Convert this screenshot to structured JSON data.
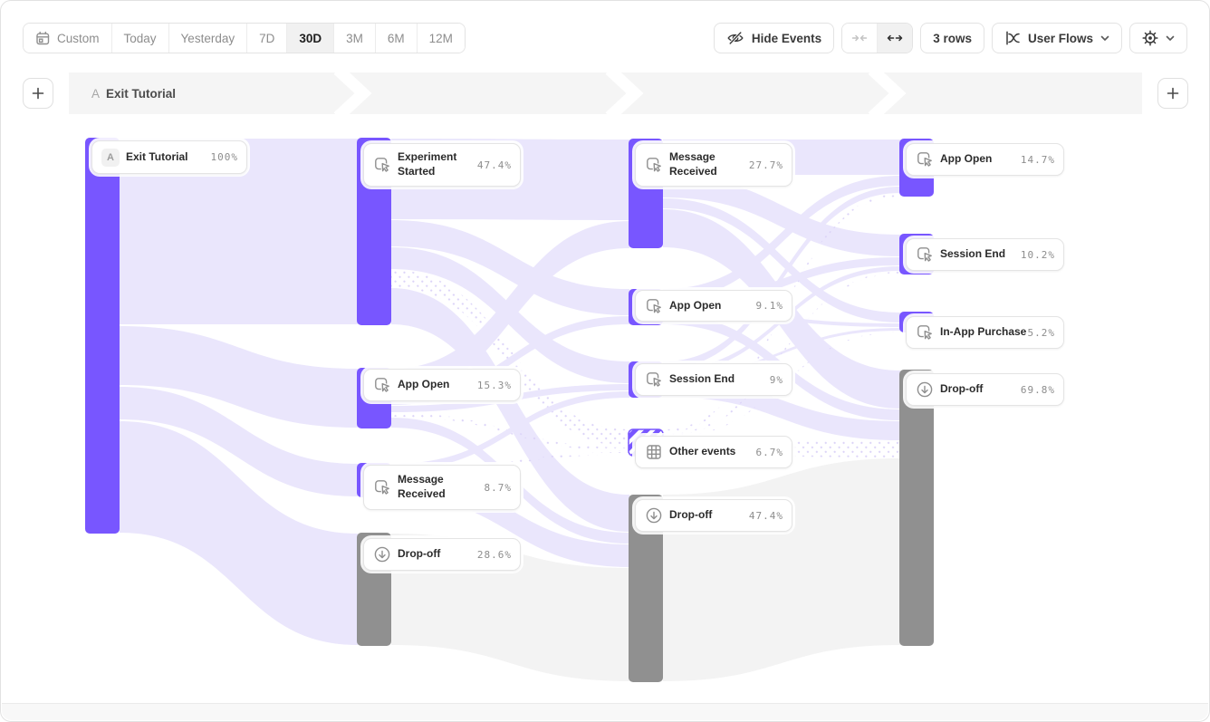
{
  "toolbar": {
    "date_ranges": [
      "Custom",
      "Today",
      "Yesterday",
      "7D",
      "30D",
      "3M",
      "6M",
      "12M"
    ],
    "active_range": "30D",
    "hide_events_label": "Hide Events",
    "rows_label": "3 rows",
    "view_label": "User Flows"
  },
  "header": {
    "flow_badge": "A",
    "flow_title": "Exit Tutorial"
  },
  "flow": {
    "columns": [
      {
        "nodes": [
          {
            "badge": "A",
            "label": "Exit Tutorial",
            "pct": "100%",
            "type": "event"
          }
        ]
      },
      {
        "nodes": [
          {
            "label": "Experiment Started",
            "pct": "47.4%",
            "type": "event"
          },
          {
            "label": "App Open",
            "pct": "15.3%",
            "type": "event"
          },
          {
            "label": "Message Received",
            "pct": "8.7%",
            "type": "event"
          },
          {
            "label": "Drop-off",
            "pct": "28.6%",
            "type": "dropoff"
          }
        ]
      },
      {
        "nodes": [
          {
            "label": "Message Received",
            "pct": "27.7%",
            "type": "event"
          },
          {
            "label": "App Open",
            "pct": "9.1%",
            "type": "event"
          },
          {
            "label": "Session End",
            "pct": "9%",
            "type": "event"
          },
          {
            "label": "Other events",
            "pct": "6.7%",
            "type": "other"
          },
          {
            "label": "Drop-off",
            "pct": "47.4%",
            "type": "dropoff"
          }
        ]
      },
      {
        "nodes": [
          {
            "label": "App Open",
            "pct": "14.7%",
            "type": "event"
          },
          {
            "label": "Session End",
            "pct": "10.2%",
            "type": "event"
          },
          {
            "label": "In-App Purchase",
            "pct": "5.2%",
            "type": "event"
          },
          {
            "label": "Drop-off",
            "pct": "69.8%",
            "type": "dropoff"
          }
        ]
      }
    ]
  },
  "colors": {
    "purple": "#7856FF",
    "gray": "#909090",
    "ribbon": "#EAE6FC",
    "ribbon_gray": "#F3F3F3",
    "stripe_white": "#FFFFFF",
    "dot": "#DCD4F8"
  }
}
